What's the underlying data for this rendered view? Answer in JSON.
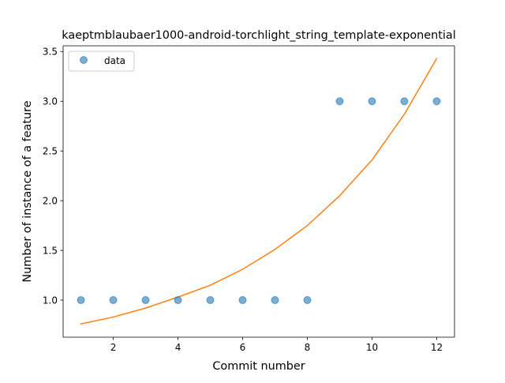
{
  "chart_data": {
    "type": "scatter",
    "title": "kaeptmblaubaer1000-android-torchlight_string_template-exponential",
    "xlabel": "Commit number",
    "ylabel": "Number of instance of a feature",
    "xlim": [
      0.45,
      12.55
    ],
    "ylim": [
      0.627,
      3.558
    ],
    "xticks": [
      2,
      4,
      6,
      8,
      10,
      12
    ],
    "xtick_labels": [
      "2",
      "4",
      "6",
      "8",
      "10",
      "12"
    ],
    "yticks": [
      1.0,
      1.5,
      2.0,
      2.5,
      3.0,
      3.5
    ],
    "ytick_labels": [
      "1.0",
      "1.5",
      "2.0",
      "2.5",
      "3.0",
      "3.5"
    ],
    "grid": false,
    "legend": {
      "position": "top-left",
      "entries": [
        "data"
      ]
    },
    "series": [
      {
        "name": "data",
        "kind": "scatter",
        "color": "#1f77b4",
        "x": [
          1,
          2,
          3,
          4,
          5,
          6,
          7,
          8,
          9,
          10,
          11,
          12
        ],
        "y": [
          1,
          1,
          1,
          1,
          1,
          1,
          1,
          1,
          3,
          3,
          3,
          3
        ]
      },
      {
        "kind": "line",
        "color": "#ff7f0e",
        "x": [
          1,
          2,
          3,
          4,
          5,
          6,
          7,
          8,
          9,
          10,
          11,
          12
        ],
        "y": [
          0.76,
          0.83,
          0.92,
          1.03,
          1.15,
          1.31,
          1.51,
          1.75,
          2.05,
          2.41,
          2.87,
          3.43
        ]
      }
    ]
  }
}
